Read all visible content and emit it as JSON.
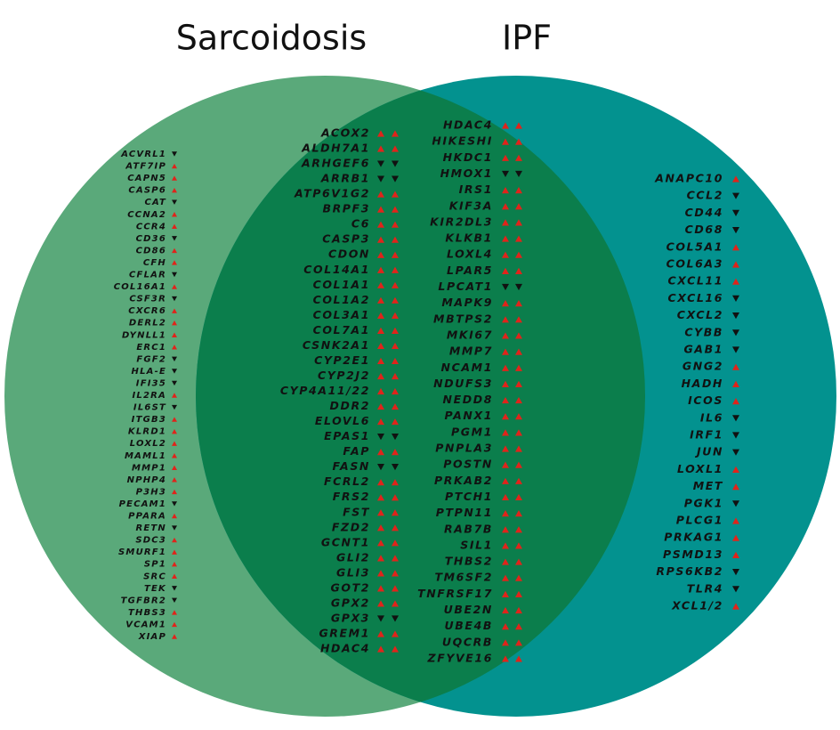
{
  "titles": {
    "left": "Sarcoidosis",
    "right": "IPF"
  },
  "sarcoidosis_only": [
    {
      "gene": "ACVRL1",
      "dir": "down"
    },
    {
      "gene": "ATF7IP",
      "dir": "up"
    },
    {
      "gene": "CAPN5",
      "dir": "up"
    },
    {
      "gene": "CASP6",
      "dir": "up"
    },
    {
      "gene": "CAT",
      "dir": "down"
    },
    {
      "gene": "CCNA2",
      "dir": "up"
    },
    {
      "gene": "CCR4",
      "dir": "up"
    },
    {
      "gene": "CD36",
      "dir": "down"
    },
    {
      "gene": "CD86",
      "dir": "up"
    },
    {
      "gene": "CFH",
      "dir": "up"
    },
    {
      "gene": "CFLAR",
      "dir": "down"
    },
    {
      "gene": "COL16A1",
      "dir": "up"
    },
    {
      "gene": "CSF3R",
      "dir": "down"
    },
    {
      "gene": "CXCR6",
      "dir": "up"
    },
    {
      "gene": "DERL2",
      "dir": "up"
    },
    {
      "gene": "DYNLL1",
      "dir": "up"
    },
    {
      "gene": "ERC1",
      "dir": "up"
    },
    {
      "gene": "FGF2",
      "dir": "down"
    },
    {
      "gene": "HLA-E",
      "dir": "down"
    },
    {
      "gene": "IFI35",
      "dir": "down"
    },
    {
      "gene": "IL2RA",
      "dir": "up"
    },
    {
      "gene": "IL6ST",
      "dir": "down"
    },
    {
      "gene": "ITGB3",
      "dir": "up"
    },
    {
      "gene": "KLRD1",
      "dir": "up"
    },
    {
      "gene": "LOXL2",
      "dir": "up"
    },
    {
      "gene": "MAML1",
      "dir": "up"
    },
    {
      "gene": "MMP1",
      "dir": "up"
    },
    {
      "gene": "NPHP4",
      "dir": "up"
    },
    {
      "gene": "P3H3",
      "dir": "up"
    },
    {
      "gene": "PECAM1",
      "dir": "down"
    },
    {
      "gene": "PPARA",
      "dir": "up"
    },
    {
      "gene": "RETN",
      "dir": "down"
    },
    {
      "gene": "SDC3",
      "dir": "up"
    },
    {
      "gene": "SMURF1",
      "dir": "up"
    },
    {
      "gene": "SP1",
      "dir": "up"
    },
    {
      "gene": "SRC",
      "dir": "up"
    },
    {
      "gene": "TEK",
      "dir": "down"
    },
    {
      "gene": "TGFBR2",
      "dir": "down"
    },
    {
      "gene": "THBS3",
      "dir": "up"
    },
    {
      "gene": "VCAM1",
      "dir": "up"
    },
    {
      "gene": "XIAP",
      "dir": "up"
    }
  ],
  "shared_col1": [
    {
      "gene": "ACOX2",
      "dir": "up"
    },
    {
      "gene": "ALDH7A1",
      "dir": "up"
    },
    {
      "gene": "ARHGEF6",
      "dir": "down"
    },
    {
      "gene": "ARRB1",
      "dir": "down"
    },
    {
      "gene": "ATP6V1G2",
      "dir": "up"
    },
    {
      "gene": "BRPF3",
      "dir": "up"
    },
    {
      "gene": "C6",
      "dir": "up"
    },
    {
      "gene": "CASP3",
      "dir": "up"
    },
    {
      "gene": "CDON",
      "dir": "up"
    },
    {
      "gene": "COL14A1",
      "dir": "up"
    },
    {
      "gene": "COL1A1",
      "dir": "up"
    },
    {
      "gene": "COL1A2",
      "dir": "up"
    },
    {
      "gene": "COL3A1",
      "dir": "up"
    },
    {
      "gene": "COL7A1",
      "dir": "up"
    },
    {
      "gene": "CSNK2A1",
      "dir": "up"
    },
    {
      "gene": "CYP2E1",
      "dir": "up"
    },
    {
      "gene": "CYP2J2",
      "dir": "up"
    },
    {
      "gene": "CYP4A11/22",
      "dir": "up"
    },
    {
      "gene": "DDR2",
      "dir": "up"
    },
    {
      "gene": "ELOVL6",
      "dir": "up"
    },
    {
      "gene": "EPAS1",
      "dir": "down"
    },
    {
      "gene": "FAP",
      "dir": "up"
    },
    {
      "gene": "FASN",
      "dir": "down"
    },
    {
      "gene": "FCRL2",
      "dir": "up"
    },
    {
      "gene": "FRS2",
      "dir": "up"
    },
    {
      "gene": "FST",
      "dir": "up"
    },
    {
      "gene": "FZD2",
      "dir": "up"
    },
    {
      "gene": "GCNT1",
      "dir": "up"
    },
    {
      "gene": "GLI2",
      "dir": "up"
    },
    {
      "gene": "GLI3",
      "dir": "up"
    },
    {
      "gene": "GOT2",
      "dir": "up"
    },
    {
      "gene": "GPX2",
      "dir": "up"
    },
    {
      "gene": "GPX3",
      "dir": "down"
    },
    {
      "gene": "GREM1",
      "dir": "up"
    },
    {
      "gene": "HDAC4",
      "dir": "up"
    }
  ],
  "shared_col2": [
    {
      "gene": "HDAC4",
      "dir": "up"
    },
    {
      "gene": "HIKESHI",
      "dir": "up"
    },
    {
      "gene": "HKDC1",
      "dir": "up"
    },
    {
      "gene": "HMOX1",
      "dir": "down"
    },
    {
      "gene": "IRS1",
      "dir": "up"
    },
    {
      "gene": "KIF3A",
      "dir": "up"
    },
    {
      "gene": "KIR2DL3",
      "dir": "up"
    },
    {
      "gene": "KLKB1",
      "dir": "up"
    },
    {
      "gene": "LOXL4",
      "dir": "up"
    },
    {
      "gene": "LPAR5",
      "dir": "up"
    },
    {
      "gene": "LPCAT1",
      "dir": "down"
    },
    {
      "gene": "MAPK9",
      "dir": "up"
    },
    {
      "gene": "MBTPS2",
      "dir": "up"
    },
    {
      "gene": "MKI67",
      "dir": "up"
    },
    {
      "gene": "MMP7",
      "dir": "up"
    },
    {
      "gene": "NCAM1",
      "dir": "up"
    },
    {
      "gene": "NDUFS3",
      "dir": "up"
    },
    {
      "gene": "NEDD8",
      "dir": "up"
    },
    {
      "gene": "PANX1",
      "dir": "up"
    },
    {
      "gene": "PGM1",
      "dir": "up"
    },
    {
      "gene": "PNPLA3",
      "dir": "up"
    },
    {
      "gene": "POSTN",
      "dir": "up"
    },
    {
      "gene": "PRKAB2",
      "dir": "up"
    },
    {
      "gene": "PTCH1",
      "dir": "up"
    },
    {
      "gene": "PTPN11",
      "dir": "up"
    },
    {
      "gene": "RAB7B",
      "dir": "up"
    },
    {
      "gene": "SIL1",
      "dir": "up"
    },
    {
      "gene": "THBS2",
      "dir": "up"
    },
    {
      "gene": "TM6SF2",
      "dir": "up"
    },
    {
      "gene": "TNFRSF17",
      "dir": "up"
    },
    {
      "gene": "UBE2N",
      "dir": "up"
    },
    {
      "gene": "UBE4B",
      "dir": "up"
    },
    {
      "gene": "UQCRB",
      "dir": "up"
    },
    {
      "gene": "ZFYVE16",
      "dir": "up"
    }
  ],
  "ipf_only": [
    {
      "gene": "ANAPC10",
      "dir": "up"
    },
    {
      "gene": "CCL2",
      "dir": "down"
    },
    {
      "gene": "CD44",
      "dir": "down"
    },
    {
      "gene": "CD68",
      "dir": "down"
    },
    {
      "gene": "COL5A1",
      "dir": "up"
    },
    {
      "gene": "COL6A3",
      "dir": "up"
    },
    {
      "gene": "CXCL11",
      "dir": "up"
    },
    {
      "gene": "CXCL16",
      "dir": "down"
    },
    {
      "gene": "CXCL2",
      "dir": "down"
    },
    {
      "gene": "CYBB",
      "dir": "down"
    },
    {
      "gene": "GAB1",
      "dir": "down"
    },
    {
      "gene": "GNG2",
      "dir": "up"
    },
    {
      "gene": "HADH",
      "dir": "up"
    },
    {
      "gene": "ICOS",
      "dir": "up"
    },
    {
      "gene": "IL6",
      "dir": "down"
    },
    {
      "gene": "IRF1",
      "dir": "down"
    },
    {
      "gene": "JUN",
      "dir": "down"
    },
    {
      "gene": "LOXL1",
      "dir": "up"
    },
    {
      "gene": "MET",
      "dir": "up"
    },
    {
      "gene": "PGK1",
      "dir": "down"
    },
    {
      "gene": "PLCG1",
      "dir": "up"
    },
    {
      "gene": "PRKAG1",
      "dir": "up"
    },
    {
      "gene": "PSMD13",
      "dir": "up"
    },
    {
      "gene": "RPS6KB2",
      "dir": "down"
    },
    {
      "gene": "TLR4",
      "dir": "down"
    },
    {
      "gene": "XCL1/2",
      "dir": "up"
    }
  ]
}
